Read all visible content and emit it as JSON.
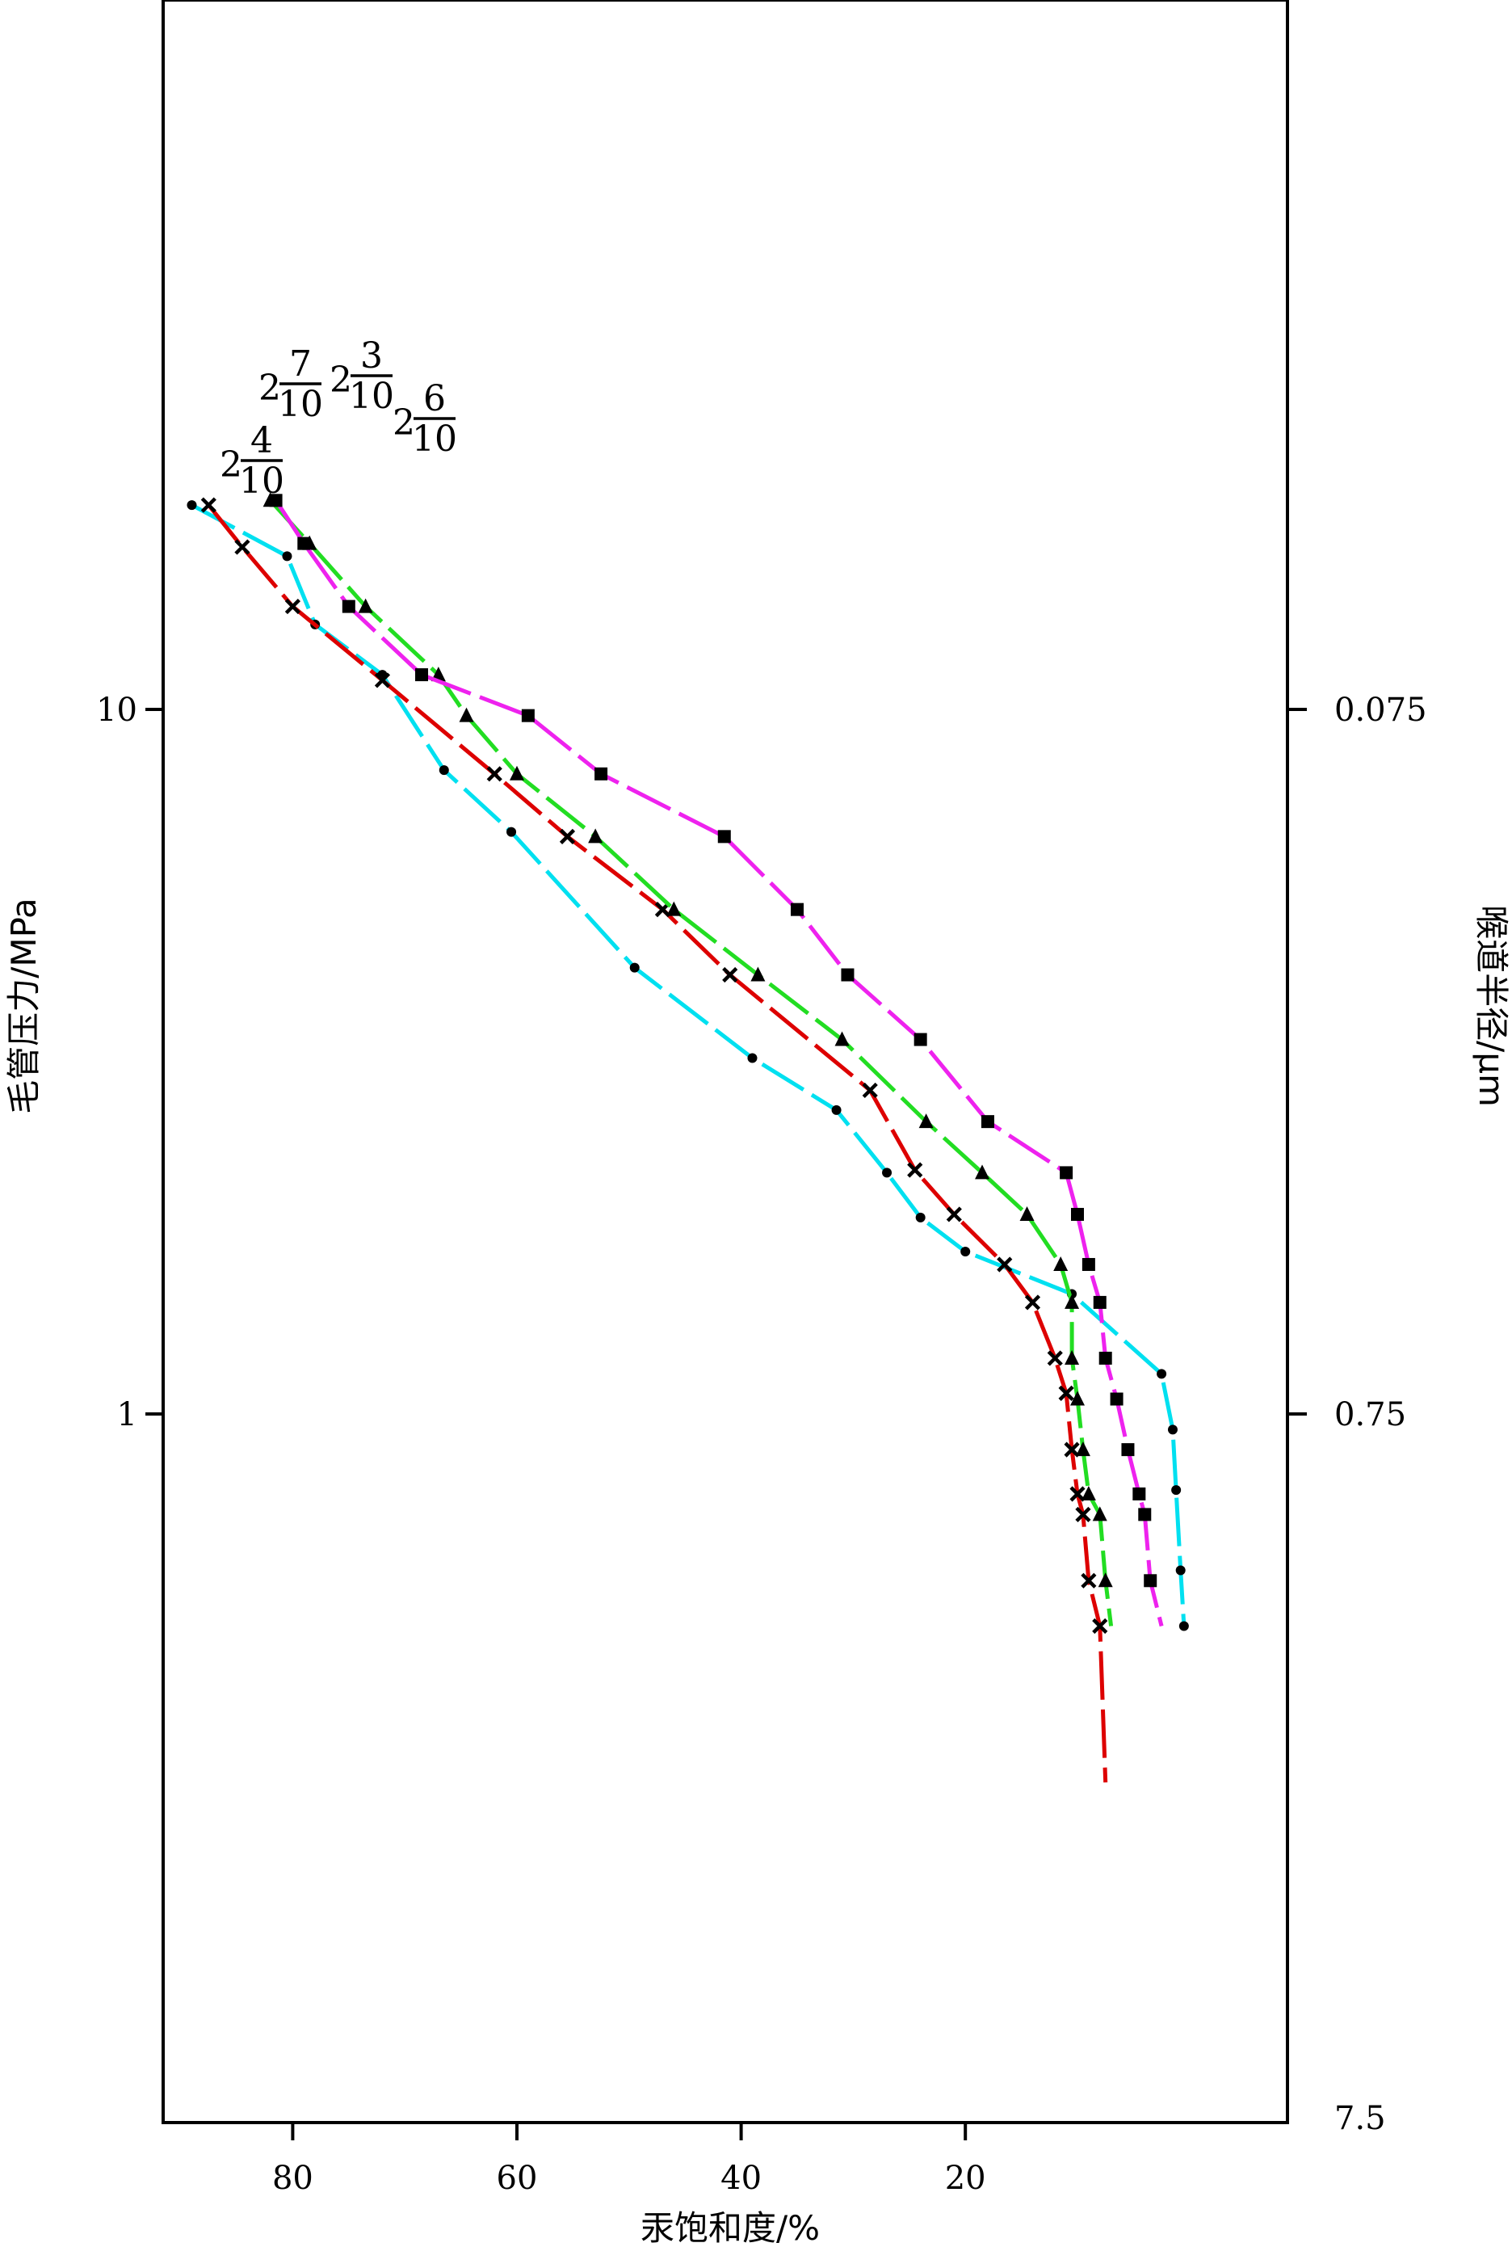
{
  "chart_data": {
    "type": "line",
    "xlabel": "汞饱和度/%",
    "ylabel": "毛管压力/MPa",
    "ylabel_right": "喉道半径/μm",
    "x_axis": {
      "range": [
        100,
        0
      ],
      "reversed": true,
      "ticks": [
        80,
        60,
        40,
        20
      ],
      "tick_labels": [
        "80",
        "60",
        "40",
        "20"
      ]
    },
    "y_axis": {
      "scale": "log",
      "range": [
        0.1,
        100
      ],
      "ticks": [
        10,
        1
      ],
      "tick_labels": [
        "10",
        "1"
      ]
    },
    "y_axis_right": {
      "tick_labels": [
        "0.075",
        "0.75",
        "7.5"
      ]
    },
    "grid": false,
    "legend": "inline labels near upper-left ends of curves",
    "series": [
      {
        "name_lines": [
          "2",
          "4",
          "10"
        ],
        "color": "#00e0f0",
        "marker": "dot",
        "x": [
          89,
          80.5,
          78,
          72,
          66.5,
          60.5,
          49.5,
          39,
          31.5,
          27,
          24,
          20,
          10.5,
          2.5,
          1.5,
          1.2,
          0.8,
          0.5
        ],
        "y": [
          19.5,
          16.5,
          13.2,
          11.2,
          8.2,
          6.7,
          4.3,
          3.2,
          2.7,
          2.2,
          1.9,
          1.7,
          1.48,
          1.14,
          0.95,
          0.78,
          0.6,
          0.5
        ]
      },
      {
        "name_lines": [
          "2",
          "7",
          "10"
        ],
        "color": "#dd0000",
        "marker": "x",
        "x": [
          87.5,
          84.5,
          80,
          72,
          62,
          55.5,
          47,
          41,
          28.5,
          24.5,
          21,
          16.5,
          14,
          12,
          11,
          10.5,
          10,
          9.5,
          9,
          8,
          7.5
        ],
        "y": [
          19.5,
          17,
          14,
          11,
          8.1,
          6.6,
          5.2,
          4.2,
          2.88,
          2.22,
          1.92,
          1.63,
          1.44,
          1.2,
          1.07,
          0.89,
          0.77,
          0.72,
          0.58,
          0.5,
          0.3
        ]
      },
      {
        "name_lines": [
          "2",
          "3",
          "10"
        ],
        "color": "#22dd22",
        "marker": "triangle",
        "x": [
          82,
          78.5,
          73.5,
          67,
          64.5,
          60,
          53,
          46,
          38.5,
          31,
          23.5,
          18.5,
          14.5,
          11.5,
          10.5,
          10.5,
          10,
          9.5,
          9,
          8,
          7.5,
          7
        ],
        "y": [
          19.8,
          17.2,
          14,
          11.2,
          9.8,
          8.1,
          6.6,
          5.2,
          4.2,
          3.4,
          2.6,
          2.2,
          1.92,
          1.63,
          1.44,
          1.2,
          1.05,
          0.89,
          0.77,
          0.72,
          0.58,
          0.5
        ]
      },
      {
        "name_lines": [
          "2",
          "6",
          "10"
        ],
        "color": "#ee22ee",
        "marker": "square",
        "x": [
          81.5,
          79,
          75,
          68.5,
          59,
          52.5,
          41.5,
          35,
          30.5,
          24,
          18,
          11,
          10,
          9,
          8,
          7.5,
          6.5,
          5.5,
          4.5,
          4,
          3.5,
          2.5
        ],
        "y": [
          19.8,
          17.2,
          14,
          11.2,
          9.8,
          8.1,
          6.6,
          5.2,
          4.2,
          3.4,
          2.6,
          2.2,
          1.92,
          1.63,
          1.44,
          1.2,
          1.05,
          0.89,
          0.77,
          0.72,
          0.58,
          0.5
        ]
      }
    ]
  }
}
